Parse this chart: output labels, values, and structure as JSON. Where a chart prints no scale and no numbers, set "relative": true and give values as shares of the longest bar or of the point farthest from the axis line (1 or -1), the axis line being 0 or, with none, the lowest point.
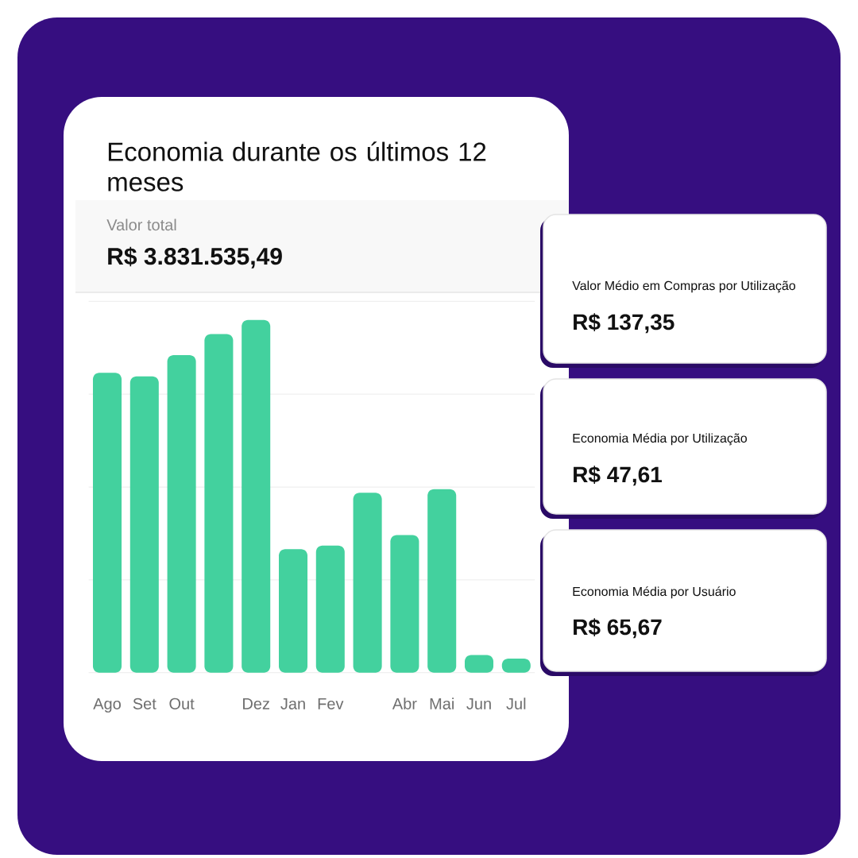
{
  "chart_data": [
    {
      "type": "bar",
      "title": "Economia durante os últimos 12 meses",
      "annotations": [
        "Valor total",
        "R$ 3.831.535,49"
      ],
      "categories": [
        "Ago",
        "Set",
        "Out",
        null,
        "Dez",
        "Jan",
        "Fev",
        null,
        "Abr",
        "Mai",
        "Jun",
        "Jul"
      ],
      "values": [
        0.85,
        0.84,
        0.9,
        0.96,
        1,
        0.35,
        0.36,
        0.51,
        0.39,
        0.52,
        0.05,
        0.04
      ],
      "color": "#43d19e",
      "relative": true,
      "grid": "y"
    },
    {
      "type": "other",
      "title": "Valor Médio em Compras por Utilização",
      "annotations": [
        "R$ 137,35"
      ]
    },
    {
      "type": "other",
      "title": "Economia Média por Utilização",
      "annotations": [
        "R$ 47,61"
      ]
    },
    {
      "type": "other",
      "title": "Economia Média por Usuário",
      "annotations": [
        "R$ 65,67"
      ]
    }
  ]
}
